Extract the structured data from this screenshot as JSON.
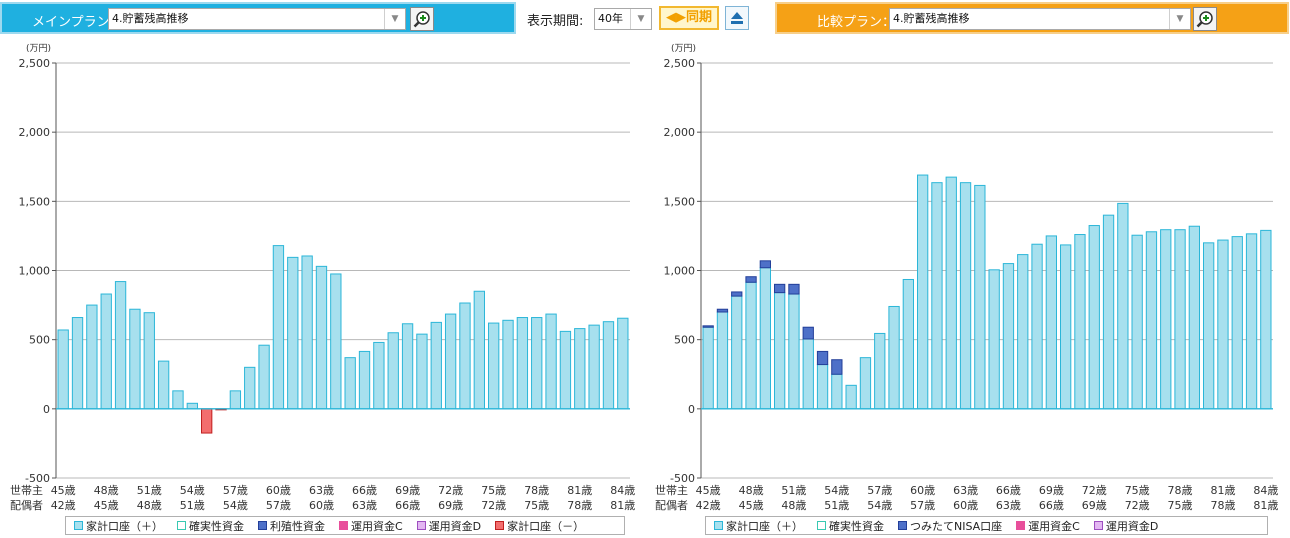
{
  "main_plan": {
    "label": "メインプラン：",
    "selected": "4.貯蓄残高推移"
  },
  "period": {
    "label": "表示期間:",
    "value": "40年"
  },
  "sync_button": "◀▶同期",
  "compare_plan": {
    "label": "比較プラン：",
    "selected": "4.貯蓄残高推移"
  },
  "row_labels": {
    "householder": "世帯主",
    "spouse": "配偶者"
  },
  "colors": {
    "household_plus": "#a7e0ee",
    "household_plus_border": "#2bb6d8",
    "fixed_asset": "#ffffff",
    "fixed_asset_border": "#39c9b2",
    "liquid": "#4e70c8",
    "liquid_border": "#233f99",
    "fund_c": "#e84f9b",
    "fund_d": "#e3b7f2",
    "fund_d_border": "#9d4fc0",
    "household_minus": "#f36e6e",
    "household_minus_border": "#c02020"
  },
  "charts": [
    {
      "id": "main",
      "chart_data": {
        "type": "bar",
        "stacked": true,
        "ylabel": "(万円)",
        "ylim": [
          -500,
          2500
        ],
        "yticks": [
          "-500",
          "0",
          "500",
          "1,000",
          "1,500",
          "2,000",
          "2,500"
        ],
        "yticks_values": [
          -500,
          0,
          500,
          1000,
          1500,
          2000,
          2500
        ],
        "grid": true,
        "x_householder_ticks": [
          "45歳",
          "48歳",
          "51歳",
          "54歳",
          "57歳",
          "60歳",
          "63歳",
          "66歳",
          "69歳",
          "72歳",
          "75歳",
          "78歳",
          "81歳",
          "84歳"
        ],
        "x_spouse_ticks": [
          "42歳",
          "45歳",
          "48歳",
          "51歳",
          "54歳",
          "57歳",
          "60歳",
          "63歳",
          "66歳",
          "69歳",
          "72歳",
          "75歳",
          "78歳",
          "81歳"
        ],
        "legend": [
          "家計口座（＋）",
          "確実性資金",
          "利殖性資金",
          "運用資金C",
          "運用資金D",
          "家計口座（－）"
        ],
        "series": [
          {
            "name": "家計口座（＋）",
            "values": [
              570,
              660,
              750,
              830,
              920,
              720,
              695,
              345,
              130,
              40,
              0,
              0,
              130,
              300,
              460,
              1180,
              1095,
              1105,
              1030,
              975,
              370,
              415,
              480,
              550,
              615,
              540,
              625,
              685,
              765,
              850,
              620,
              640,
              660,
              660,
              685,
              560,
              580,
              605,
              630,
              655
            ]
          },
          {
            "name": "家計口座（－）",
            "values": [
              0,
              0,
              0,
              0,
              0,
              0,
              0,
              0,
              0,
              0,
              -175,
              -5,
              0,
              0,
              0,
              0,
              0,
              0,
              0,
              0,
              0,
              0,
              0,
              0,
              0,
              0,
              0,
              0,
              0,
              0,
              0,
              0,
              0,
              0,
              0,
              0,
              0,
              0,
              0,
              0
            ]
          }
        ]
      }
    },
    {
      "id": "compare",
      "chart_data": {
        "type": "bar",
        "stacked": true,
        "ylabel": "(万円)",
        "ylim": [
          -500,
          2500
        ],
        "yticks": [
          "-500",
          "0",
          "500",
          "1,000",
          "1,500",
          "2,000",
          "2,500"
        ],
        "yticks_values": [
          -500,
          0,
          500,
          1000,
          1500,
          2000,
          2500
        ],
        "grid": true,
        "x_householder_ticks": [
          "45歳",
          "48歳",
          "51歳",
          "54歳",
          "57歳",
          "60歳",
          "63歳",
          "66歳",
          "69歳",
          "72歳",
          "75歳",
          "78歳",
          "81歳",
          "84歳"
        ],
        "x_spouse_ticks": [
          "42歳",
          "45歳",
          "48歳",
          "51歳",
          "54歳",
          "57歳",
          "60歳",
          "63歳",
          "66歳",
          "69歳",
          "72歳",
          "75歳",
          "78歳",
          "81歳"
        ],
        "legend": [
          "家計口座（＋）",
          "確実性資金",
          "つみたてNISA口座",
          "運用資金C",
          "運用資金D"
        ],
        "series": [
          {
            "name": "家計口座（＋）",
            "values": [
              590,
              700,
              815,
              915,
              1020,
              840,
              830,
              505,
              320,
              250,
              170,
              370,
              545,
              740,
              935,
              1690,
              1635,
              1675,
              1635,
              1615,
              1005,
              1050,
              1115,
              1190,
              1250,
              1185,
              1260,
              1325,
              1400,
              1485,
              1255,
              1280,
              1295,
              1295,
              1320,
              1200,
              1220,
              1245,
              1265,
              1290
            ]
          },
          {
            "name": "つみたてNISA口座",
            "values": [
              10,
              20,
              30,
              40,
              50,
              60,
              70,
              85,
              95,
              105,
              0,
              0,
              0,
              0,
              0,
              0,
              0,
              0,
              0,
              0,
              0,
              0,
              0,
              0,
              0,
              0,
              0,
              0,
              0,
              0,
              0,
              0,
              0,
              0,
              0,
              0,
              0,
              0,
              0,
              0
            ]
          }
        ]
      }
    }
  ]
}
